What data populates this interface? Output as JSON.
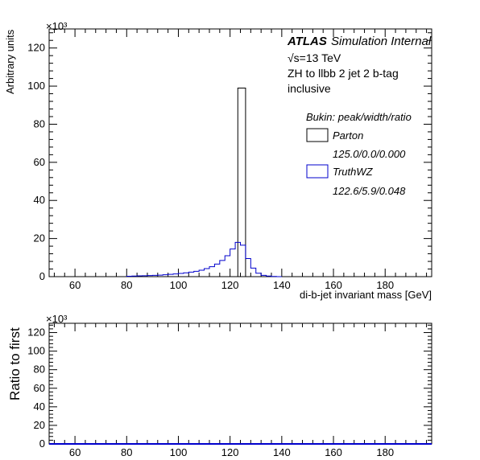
{
  "chart_data": [
    {
      "type": "histogram",
      "xlabel": "di-b-jet invariant mass [GeV]",
      "ylabel": "Arbitrary units",
      "y_multiplier": "×10³",
      "xlim": [
        50,
        198
      ],
      "ylim": [
        0,
        130
      ],
      "x_tick_labels": [
        "60",
        "80",
        "100",
        "120",
        "140",
        "160",
        "180"
      ],
      "y_tick_labels": [
        "0",
        "20",
        "40",
        "60",
        "80",
        "100",
        "120"
      ],
      "annotations": {
        "atlas": "ATLAS",
        "atlas_suffix": "Simulation Internal",
        "sqrt_s": "√s=13 TeV",
        "process": "ZH to llbb 2 jet 2 b-tag",
        "selection": "inclusive"
      },
      "legend": {
        "header": "Bukin: peak/width/ratio",
        "placement": "right"
      },
      "series": [
        {
          "name": "Parton",
          "fit_label": "125.0/0.0/0.000",
          "color": "#000000",
          "bin_edges": [
            123,
            126
          ],
          "values": [
            99
          ]
        },
        {
          "name": "TruthWZ",
          "fit_label": "122.6/5.9/0.048",
          "color": "#0000cc",
          "bin_edges": [
            80,
            82,
            84,
            86,
            88,
            90,
            92,
            94,
            96,
            98,
            100,
            102,
            104,
            106,
            108,
            110,
            112,
            114,
            116,
            118,
            120,
            122,
            124,
            126,
            128,
            130,
            132,
            134,
            136,
            138,
            140
          ],
          "values": [
            0.2,
            0.3,
            0.4,
            0.5,
            0.6,
            0.7,
            0.8,
            1.0,
            1.2,
            1.4,
            1.7,
            2.0,
            2.4,
            2.8,
            3.4,
            4.2,
            5.2,
            6.6,
            8.5,
            11.0,
            14.5,
            18.0,
            16.5,
            9.5,
            4.5,
            1.8,
            0.7,
            0.3,
            0.1,
            0.0
          ]
        }
      ]
    },
    {
      "type": "ratio",
      "ylabel": "Ratio to first",
      "y_multiplier": "×10³",
      "xlim": [
        50,
        198
      ],
      "ylim": [
        0,
        130
      ],
      "x_tick_labels": [
        "60",
        "80",
        "100",
        "120",
        "140",
        "160",
        "180"
      ],
      "y_tick_labels": [
        "0",
        "20",
        "40",
        "60",
        "80",
        "100",
        "120"
      ],
      "series": [
        {
          "name": "TruthWZ",
          "color": "#0000cc",
          "value": 0
        }
      ]
    }
  ]
}
